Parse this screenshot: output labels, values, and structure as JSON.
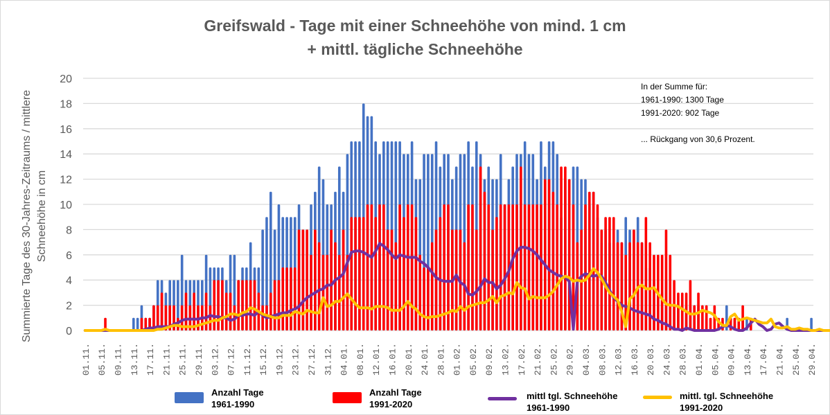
{
  "chart_data": {
    "type": "bar",
    "title": "Greifswald - Tage mit einer Schneehöhe von mind. 1 cm",
    "subtitle": "+ mittl. tägliche Schneehöhe",
    "ylabel": "Summierte Tage des 30-Jahres-Zeitraums / mittlere Schneehöhe in cm",
    "xlabel": "",
    "ylim": [
      0,
      20
    ],
    "yticks": [
      0,
      2,
      4,
      6,
      8,
      10,
      12,
      14,
      16,
      18,
      20
    ],
    "grid": true,
    "legend_position": "bottom",
    "x_start": "01.11.",
    "x_end": "29.04.",
    "xtick_labels": [
      "01.11.",
      "05.11.",
      "09.11.",
      "13.11.",
      "17.11.",
      "21.11.",
      "25.11.",
      "29.11.",
      "03.12.",
      "07.12.",
      "11.12.",
      "15.12.",
      "19.12.",
      "23.12.",
      "27.12.",
      "31.12.",
      "04.01.",
      "08.01.",
      "12.01.",
      "16.01.",
      "20.01.",
      "24.01.",
      "28.01.",
      "01.02.",
      "05.02.",
      "09.02.",
      "13.02.",
      "17.02.",
      "21.02.",
      "25.02.",
      "29.02.",
      "04.03.",
      "08.03.",
      "12.03.",
      "16.03.",
      "20.03.",
      "24.03.",
      "28.03.",
      "01.04.",
      "05.04.",
      "09.04.",
      "13.04.",
      "17.04.",
      "21.04.",
      "25.04.",
      "29.04."
    ],
    "series": [
      {
        "name": "Anzahl Tage 1961-1990",
        "kind": "bar",
        "color": "#4472c4",
        "values": [
          0,
          0,
          0,
          0,
          0,
          0,
          0,
          0,
          0,
          0,
          0,
          0,
          1,
          1,
          2,
          1,
          1,
          2,
          4,
          4,
          3,
          4,
          4,
          4,
          6,
          4,
          4,
          4,
          4,
          4,
          6,
          5,
          5,
          5,
          5,
          4,
          6,
          6,
          4,
          5,
          5,
          7,
          5,
          5,
          8,
          9,
          11,
          8,
          10,
          9,
          9,
          9,
          9,
          10,
          8,
          8,
          10,
          11,
          13,
          12,
          10,
          10,
          11,
          13,
          11,
          14,
          15,
          15,
          15,
          18,
          17,
          17,
          15,
          14,
          15,
          15,
          15,
          15,
          15,
          14,
          14,
          15,
          12,
          12,
          14,
          14,
          14,
          15,
          13,
          14,
          14,
          12,
          13,
          14,
          14,
          15,
          13,
          15,
          14,
          12,
          13,
          12,
          12,
          14,
          10,
          12,
          13,
          14,
          14,
          15,
          14,
          14,
          12,
          15,
          13,
          15,
          15,
          14,
          9,
          12,
          12,
          13,
          13,
          12,
          12,
          10,
          11,
          9,
          7,
          8,
          7,
          7,
          8,
          7,
          9,
          8,
          8,
          9,
          7,
          5,
          5,
          4,
          3,
          3,
          4,
          2,
          2,
          2,
          2,
          2,
          2,
          2,
          2,
          0,
          1,
          0,
          0,
          0,
          0,
          2,
          1,
          1,
          1,
          1,
          1,
          1,
          0,
          0,
          0,
          0,
          0,
          0,
          0,
          0,
          1,
          0,
          0,
          0,
          0,
          0,
          1
        ],
        "note": "estimated per day from 01.11. to 29.04."
      },
      {
        "name": "Anzahl Tage 1991-2020",
        "kind": "bar",
        "color": "#ff0000",
        "values": [
          0,
          0,
          0,
          0,
          0,
          1,
          0,
          0,
          0,
          0,
          0,
          0,
          0,
          0,
          1,
          1,
          1,
          2,
          2,
          3,
          2,
          2,
          2,
          1,
          2,
          3,
          2,
          3,
          2,
          2,
          3,
          2,
          4,
          4,
          4,
          3,
          3,
          2,
          4,
          4,
          4,
          4,
          4,
          3,
          2,
          2,
          3,
          4,
          4,
          5,
          5,
          5,
          5,
          8,
          8,
          8,
          6,
          8,
          7,
          6,
          6,
          8,
          7,
          6,
          8,
          6,
          9,
          9,
          9,
          9,
          10,
          10,
          9,
          10,
          10,
          8,
          8,
          7,
          10,
          9,
          10,
          10,
          9,
          6,
          5,
          5,
          7,
          8,
          9,
          10,
          10,
          8,
          8,
          8,
          7,
          10,
          10,
          8,
          13,
          11,
          10,
          8,
          9,
          10,
          10,
          10,
          10,
          10,
          13,
          10,
          10,
          10,
          10,
          10,
          12,
          12,
          11,
          10,
          13,
          13,
          12,
          10,
          7,
          8,
          10,
          11,
          11,
          10,
          8,
          9,
          9,
          9,
          7,
          7,
          6,
          7,
          8,
          7,
          7,
          9,
          7,
          6,
          6,
          6,
          8,
          6,
          4,
          3,
          3,
          3,
          4,
          2,
          3,
          2,
          2,
          1,
          2,
          1,
          1,
          0,
          1,
          1,
          1,
          2,
          0,
          1,
          0,
          0,
          0,
          0,
          0,
          0,
          0,
          0,
          0,
          0,
          0,
          0,
          0,
          0,
          0
        ],
        "note": "estimated per day"
      },
      {
        "name": "mittl tgl. Schneehöhe 1961-1990",
        "kind": "line",
        "color": "#7030a0",
        "values": [
          0,
          0,
          0,
          0,
          0,
          0,
          0,
          0,
          0,
          0,
          0,
          0,
          0,
          0,
          0,
          0.1,
          0.2,
          0.2,
          0.3,
          0.3,
          0.3,
          0.3,
          0.5,
          0.6,
          0.8,
          0.9,
          0.9,
          0.9,
          0.9,
          1,
          1,
          1.2,
          1.1,
          1.1,
          1,
          1,
          0.8,
          0.9,
          1.2,
          1.2,
          1.3,
          1.3,
          1.2,
          1.5,
          1.2,
          1,
          1.1,
          1.2,
          1.3,
          1.4,
          1.4,
          1.6,
          1.7,
          1.9,
          2.3,
          2.6,
          2.8,
          3,
          3.2,
          3.3,
          3.6,
          3.6,
          4,
          4.2,
          4.5,
          5.4,
          6.2,
          6.3,
          6.3,
          6.2,
          6,
          5.8,
          6.3,
          6.9,
          6.7,
          6.4,
          6,
          5.7,
          6,
          5.9,
          5.8,
          5.8,
          5.8,
          5.5,
          5.3,
          5,
          4.6,
          4.2,
          4,
          3.9,
          3.9,
          3.9,
          4.4,
          3.8,
          3.6,
          2.9,
          2.8,
          3.1,
          3.5,
          4.1,
          3.8,
          3.8,
          3.3,
          3.6,
          4.1,
          4.7,
          5.7,
          6.3,
          6.6,
          6.6,
          6.5,
          6.3,
          6,
          5.6,
          5.2,
          4.8,
          4.6,
          4.4,
          4.3,
          4.2,
          3.9,
          0.1,
          3.9,
          4.3,
          4.5,
          4.4,
          4.3,
          4.4,
          4.3,
          3.8,
          3.2,
          2.6,
          2.3,
          2,
          1.9,
          1.8,
          1.6,
          1.5,
          1.4,
          1.3,
          1.2,
          0.9,
          0.8,
          0.6,
          0.5,
          0.3,
          0.1,
          0.1,
          0,
          0.2,
          0.1,
          0,
          0,
          0,
          0,
          0,
          0,
          0.1,
          0.3,
          0.4,
          0.3,
          0.1,
          0,
          0,
          0.2,
          0.6,
          0.9,
          0.5,
          0.3,
          0,
          0.1,
          0.5,
          0.6,
          0.3,
          0.1,
          0,
          0,
          0,
          0,
          0,
          0,
          0,
          0,
          0,
          0,
          0,
          0,
          0.1,
          0,
          0
        ],
        "note": "estimated"
      },
      {
        "name": "mittl. tgl. Schneehöhe 1991-2020",
        "kind": "line",
        "color": "#ffc000",
        "values": [
          0,
          0,
          0,
          0,
          0,
          0.1,
          0,
          0,
          0,
          0,
          0,
          0,
          0,
          0,
          0,
          0,
          0,
          0,
          0.1,
          0.1,
          0.2,
          0.3,
          0.4,
          0.4,
          0.3,
          0.3,
          0.3,
          0.3,
          0.4,
          0.5,
          0.6,
          0.7,
          0.8,
          0.8,
          1,
          1.1,
          1.3,
          1.3,
          1.2,
          1.4,
          1.5,
          1.8,
          1.7,
          1.5,
          1.3,
          1.2,
          1.1,
          1,
          1,
          1.2,
          1.2,
          1.2,
          1.5,
          1.4,
          1.3,
          1.6,
          1.5,
          1.4,
          1.4,
          2.6,
          1.9,
          2,
          2.3,
          2.3,
          2.6,
          2.9,
          2.5,
          2.1,
          1.8,
          1.8,
          1.8,
          1.7,
          1.9,
          1.9,
          1.9,
          1.8,
          1.6,
          1.6,
          1.6,
          1.9,
          2.3,
          1.9,
          1.7,
          1.3,
          1.1,
          1,
          1.1,
          1.1,
          1.2,
          1.3,
          1.4,
          1.6,
          1.5,
          1.9,
          1.6,
          1.9,
          2,
          2.1,
          2.2,
          2.2,
          2.4,
          2.7,
          2.2,
          2.7,
          2.8,
          3,
          2.9,
          3.8,
          3.4,
          3.3,
          2.5,
          2.7,
          2.6,
          2.6,
          2.6,
          2.8,
          3.1,
          3.6,
          4.1,
          4.3,
          4.2,
          3.9,
          4,
          3.9,
          4,
          4.4,
          4.9,
          4.6,
          4.1,
          3.5,
          3,
          2.7,
          2.4,
          1.5,
          0.3,
          2.5,
          2.8,
          3.4,
          3.6,
          3.3,
          3.3,
          3.4,
          2.9,
          2.5,
          2.1,
          2,
          2,
          1.9,
          1.7,
          1.5,
          1.3,
          1.3,
          1.4,
          1.6,
          1.5,
          1.4,
          1.2,
          0.7,
          0.4,
          0.4,
          1.1,
          1.3,
          0.8,
          0.9,
          1,
          0.9,
          0.8,
          0.7,
          0.6,
          0.6,
          0.9,
          0.3,
          0.2,
          0.2,
          0.3,
          0.1,
          0.1,
          0.2,
          0.1,
          0.1,
          0,
          0,
          0.1,
          0,
          0,
          0,
          0,
          0,
          0,
          0,
          0,
          0,
          0,
          0,
          0
        ],
        "note": "estimated"
      }
    ],
    "annotation": [
      "In der Summe für:",
      "1961-1990: 1300 Tage",
      "1991-2020: 902 Tage",
      "",
      "... Rückgang von 30,6 Prozent."
    ]
  },
  "title_line1": "Greifswald - Tage mit einer Schneehöhe von mind. 1 cm",
  "title_line2": "+ mittl. tägliche Schneehöhe",
  "ylabel_line1": "Summierte Tage des 30-Jahres-Zeitraums / mittlere",
  "ylabel_line2": "Schneehöhe in cm",
  "legend": [
    {
      "label1": "Anzahl Tage",
      "label2": "1961-1990",
      "color": "#4472c4"
    },
    {
      "label1": "Anzahl Tage",
      "label2": "1991-2020",
      "color": "#ff0000"
    },
    {
      "label1": "mittl tgl. Schneehöhe",
      "label2": "1961-1990",
      "color": "#7030a0"
    },
    {
      "label1": "mittl. tgl. Schneehöhe",
      "label2": "1991-2020",
      "color": "#ffc000"
    }
  ]
}
